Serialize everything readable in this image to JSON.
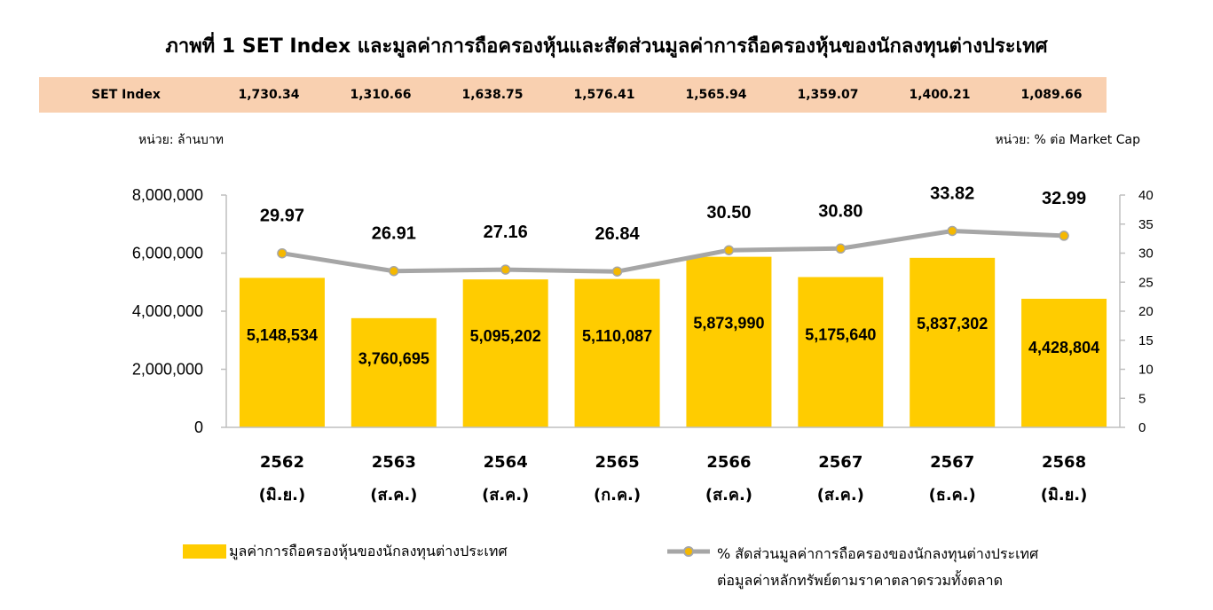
{
  "title": "ภาพที่ 1 SET Index และมูลค่าการถือครองหุ้นและสัดส่วนมูลค่าการถือครองหุ้นของนักลงทุนต่างประเทศ",
  "set_index": {
    "label": "SET Index",
    "values": [
      "1,730.34",
      "1,310.66",
      "1,638.75",
      "1,576.41",
      "1,565.94",
      "1,359.07",
      "1,400.21",
      "1,089.66"
    ]
  },
  "units": {
    "left": "หน่วย: ล้านบาท",
    "right": "หน่วย: % ต่อ Market Cap"
  },
  "legend": {
    "bar_label": "มูลค่าการถือครองหุ้นของนักลงทุนต่างประเทศ",
    "line_label_1": "% สัดส่วนมูลค่าการถือครองของนักลงทุนต่างประเทศ",
    "line_label_2": "ต่อมูลค่าหลักทรัพย์ตามราคาตลาดรวมทั้งตลาด"
  },
  "colors": {
    "bar": "#ffcc00",
    "line": "#a6a6a6",
    "marker": "#f5b800",
    "set_bar_bg": "#f9d0b0"
  },
  "chart_data": {
    "type": "bar",
    "categories": [
      [
        "2562",
        "(มิ.ย.)"
      ],
      [
        "2563",
        "(ส.ค.)"
      ],
      [
        "2564",
        "(ส.ค.)"
      ],
      [
        "2565",
        "(ก.ค.)"
      ],
      [
        "2566",
        "(ส.ค.)"
      ],
      [
        "2567",
        "(ส.ค.)"
      ],
      [
        "2567",
        "(ธ.ค.)"
      ],
      [
        "2568",
        "(มิ.ย.)"
      ]
    ],
    "series": [
      {
        "type": "bar",
        "axis": "left",
        "values": [
          5148534,
          3760695,
          5095202,
          5110087,
          5873990,
          5175640,
          5837302,
          4428804
        ],
        "labels": [
          "5,148,534",
          "3,760,695",
          "5,095,202",
          "5,110,087",
          "5,873,990",
          "5,175,640",
          "5,837,302",
          "4,428,804"
        ]
      },
      {
        "type": "line",
        "axis": "right",
        "values": [
          29.97,
          26.91,
          27.16,
          26.84,
          30.5,
          30.8,
          33.82,
          32.99
        ],
        "labels": [
          "29.97",
          "26.91",
          "27.16",
          "26.84",
          "30.50",
          "30.80",
          "33.82",
          "32.99"
        ]
      }
    ],
    "y_left": {
      "min": 0,
      "max": 8000000,
      "ticks": [
        0,
        2000000,
        4000000,
        6000000,
        8000000
      ],
      "tick_labels": [
        "0",
        "2,000,000",
        "4,000,000",
        "6,000,000",
        "8,000,000"
      ]
    },
    "y_right": {
      "min": 0,
      "max": 40,
      "ticks": [
        0,
        5,
        10,
        15,
        20,
        25,
        30,
        35,
        40
      ],
      "tick_labels": [
        "0",
        "5",
        "10",
        "15",
        "20",
        "25",
        "30",
        "35",
        "40"
      ]
    },
    "grid": false,
    "legend_position": "bottom"
  }
}
